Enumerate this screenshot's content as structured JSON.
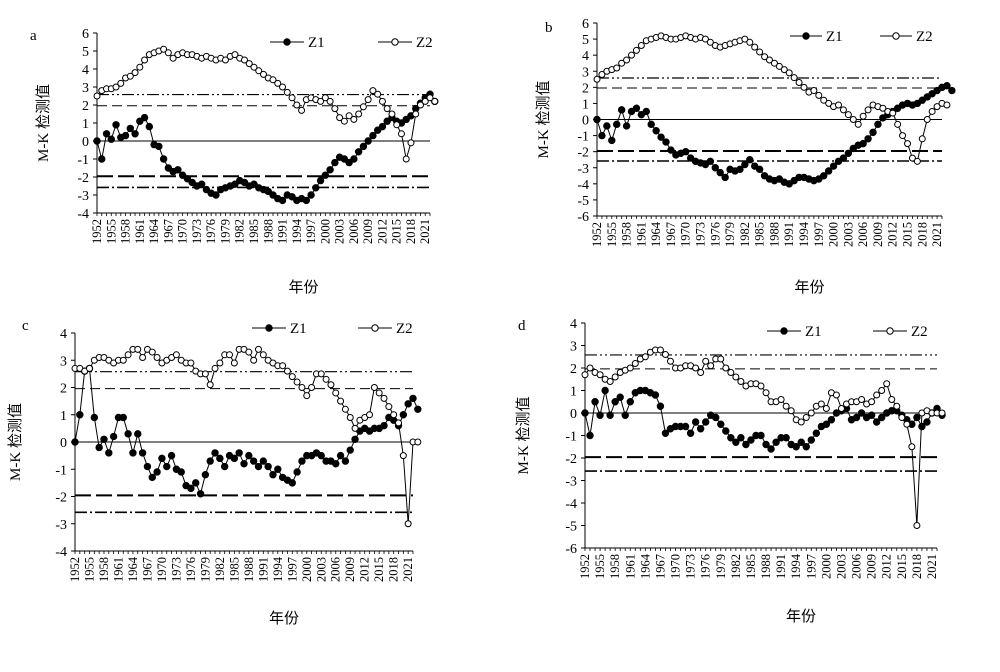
{
  "chart_data": [
    {
      "panel": "a",
      "type": "line",
      "ylabel": "M-K 检测值",
      "xlabel": "年份",
      "ylim": [
        -4,
        6
      ],
      "yticks": [
        -4,
        -3,
        -2,
        -1,
        0,
        1,
        2,
        3,
        4,
        5,
        6
      ],
      "xticks": [
        "1952",
        "1955",
        "1958",
        "1961",
        "1964",
        "1967",
        "1970",
        "1973",
        "1976",
        "1979",
        "1982",
        "1985",
        "1988",
        "1991",
        "1994",
        "1997",
        "2000",
        "2003",
        "2006",
        "2009",
        "2012",
        "2015",
        "2018",
        "2021"
      ],
      "year_start": 1952,
      "year_end": 2022,
      "critical_lines": [
        1.96,
        -1.96,
        2.58,
        -2.58
      ],
      "series": [
        {
          "name": "Z1",
          "style": "filled",
          "values": [
            0,
            -1,
            0.4,
            0.1,
            0.9,
            0.2,
            0.3,
            0.7,
            0.4,
            1.1,
            1.3,
            0.8,
            -0.2,
            -0.3,
            -1,
            -1.5,
            -1.7,
            -1.6,
            -1.9,
            -2.1,
            -2.3,
            -2.5,
            -2.4,
            -2.7,
            -2.9,
            -3,
            -2.7,
            -2.6,
            -2.5,
            -2.4,
            -2.2,
            -2.3,
            -2.5,
            -2.4,
            -2.6,
            -2.7,
            -2.8,
            -3,
            -3.2,
            -3.3,
            -3,
            -3.1,
            -3.3,
            -3.2,
            -3.3,
            -3,
            -2.6,
            -2.2,
            -1.9,
            -1.6,
            -1.2,
            -0.9,
            -1,
            -1.2,
            -1,
            -0.6,
            -0.3,
            0,
            0.3,
            0.6,
            0.8,
            1.1,
            1.3,
            1.1,
            1,
            1.2,
            1.4,
            1.8,
            2.1,
            2.4,
            2.6,
            2.2
          ]
        },
        {
          "name": "Z2",
          "style": "open",
          "values": [
            2.5,
            2.8,
            2.9,
            2.9,
            3,
            3.2,
            3.5,
            3.6,
            3.8,
            4.1,
            4.5,
            4.8,
            4.9,
            5,
            5.1,
            4.9,
            4.6,
            4.8,
            4.9,
            4.8,
            4.8,
            4.7,
            4.6,
            4.7,
            4.6,
            4.5,
            4.6,
            4.5,
            4.7,
            4.8,
            4.6,
            4.5,
            4.3,
            4.1,
            3.9,
            3.7,
            3.5,
            3.4,
            3.2,
            3,
            2.7,
            2.4,
            2,
            1.7,
            2.3,
            2.4,
            2.3,
            2.2,
            2.4,
            2.2,
            1.8,
            1.3,
            1.1,
            1.4,
            1.2,
            1.5,
            1.9,
            2.3,
            2.8,
            2.6,
            2.2,
            1.8,
            1.5,
            0.9,
            0.4,
            -1,
            -0.1,
            1.5,
            2,
            2.2,
            2.4,
            2.2
          ]
        }
      ]
    },
    {
      "panel": "b",
      "type": "line",
      "ylabel": "M-K 检测值",
      "xlabel": "年份",
      "ylim": [
        -6,
        6
      ],
      "yticks": [
        -6,
        -5,
        -4,
        -3,
        -2,
        -1,
        0,
        1,
        2,
        3,
        4,
        5,
        6
      ],
      "xticks": [
        "1952",
        "1955",
        "1958",
        "1961",
        "1964",
        "1967",
        "1970",
        "1973",
        "1976",
        "1979",
        "1982",
        "1985",
        "1988",
        "1991",
        "1994",
        "1997",
        "2000",
        "2003",
        "2006",
        "2009",
        "2012",
        "2015",
        "2018",
        "2021"
      ],
      "year_start": 1952,
      "year_end": 2022,
      "critical_lines": [
        1.96,
        -1.96,
        2.58,
        -2.58
      ],
      "series": [
        {
          "name": "Z1",
          "style": "filled",
          "values": [
            0,
            -1,
            -0.4,
            -1.3,
            -0.3,
            0.6,
            -0.4,
            0.5,
            0.7,
            0.3,
            0.5,
            -0.3,
            -0.7,
            -1.1,
            -1.4,
            -1.9,
            -2.2,
            -2.1,
            -2.0,
            -2.4,
            -2.6,
            -2.7,
            -2.8,
            -2.6,
            -3,
            -3.3,
            -3.6,
            -3.1,
            -3.2,
            -3.1,
            -2.8,
            -2.5,
            -2.9,
            -3.1,
            -3.5,
            -3.7,
            -3.8,
            -3.7,
            -3.9,
            -4,
            -3.8,
            -3.6,
            -3.6,
            -3.7,
            -3.8,
            -3.7,
            -3.5,
            -3.2,
            -2.9,
            -2.6,
            -2.4,
            -2.1,
            -1.8,
            -1.6,
            -1.5,
            -1.2,
            -0.8,
            -0.3,
            0.1,
            0.3,
            0.5,
            0.7,
            0.9,
            1,
            0.9,
            1,
            1.2,
            1.4,
            1.6,
            1.8,
            2,
            2.1,
            1.8
          ]
        },
        {
          "name": "Z2",
          "style": "open",
          "values": [
            2.5,
            2.8,
            3,
            3.1,
            3.2,
            3.5,
            3.7,
            4,
            4.3,
            4.6,
            4.9,
            5,
            5.1,
            5.2,
            5.1,
            5,
            5,
            5.1,
            5.2,
            5.1,
            5,
            5.1,
            5,
            4.8,
            4.6,
            4.5,
            4.6,
            4.7,
            4.8,
            4.9,
            5,
            4.8,
            4.5,
            4.2,
            3.9,
            3.7,
            3.5,
            3.3,
            3.1,
            2.9,
            2.6,
            2.3,
            2,
            1.7,
            1.8,
            1.5,
            1.2,
            1,
            0.8,
            0.9,
            0.6,
            0.3,
            0,
            -0.3,
            0.2,
            0.6,
            0.9,
            0.8,
            0.7,
            0.5,
            0.4,
            -0.3,
            -1,
            -1.5,
            -2.4,
            -2.6,
            -1.2,
            0,
            0.5,
            0.8,
            1,
            0.9
          ]
        }
      ]
    },
    {
      "panel": "c",
      "type": "line",
      "ylabel": "M-K 检测值",
      "xlabel": "年份",
      "ylim": [
        -4,
        4
      ],
      "yticks": [
        -4,
        -3,
        -2,
        -1,
        0,
        1,
        2,
        3,
        4
      ],
      "xticks": [
        "1952",
        "1955",
        "1958",
        "1961",
        "1964",
        "1967",
        "1970",
        "1973",
        "1976",
        "1979",
        "1982",
        "1985",
        "1988",
        "1991",
        "1994",
        "1997",
        "2000",
        "2003",
        "2006",
        "2009",
        "2012",
        "2015",
        "2018",
        "2021"
      ],
      "year_start": 1952,
      "year_end": 2022,
      "critical_lines": [
        1.96,
        -1.96,
        2.58,
        -2.58
      ],
      "series": [
        {
          "name": "Z1",
          "style": "filled",
          "values": [
            0,
            1,
            2.6,
            2.7,
            0.9,
            -0.2,
            0.1,
            -0.4,
            0.2,
            0.9,
            0.9,
            0.3,
            -0.4,
            0.3,
            -0.4,
            -0.9,
            -1.3,
            -1.1,
            -0.6,
            -0.9,
            -0.5,
            -1,
            -1.1,
            -1.6,
            -1.7,
            -1.5,
            -1.9,
            -1.2,
            -0.7,
            -0.4,
            -0.6,
            -0.9,
            -0.5,
            -0.6,
            -0.4,
            -0.8,
            -0.5,
            -0.7,
            -0.9,
            -0.7,
            -0.9,
            -1.2,
            -1,
            -1.3,
            -1.4,
            -1.5,
            -1.1,
            -0.7,
            -0.5,
            -0.5,
            -0.4,
            -0.5,
            -0.7,
            -0.7,
            -0.8,
            -0.5,
            -0.7,
            -0.3,
            0.1,
            0.4,
            0.5,
            0.4,
            0.5,
            0.5,
            0.6,
            0.9,
            0.8,
            0.6,
            1,
            1.4,
            1.6,
            1.2
          ]
        },
        {
          "name": "Z2",
          "style": "open",
          "values": [
            2.7,
            2.7,
            2.6,
            2.7,
            3,
            3.1,
            3.1,
            3,
            2.9,
            3,
            3,
            3.2,
            3.4,
            3.4,
            3.1,
            3.4,
            3.3,
            3.1,
            2.9,
            3,
            3.1,
            3.2,
            3,
            2.9,
            2.9,
            2.6,
            2.5,
            2.5,
            2.1,
            2.7,
            2.9,
            3.2,
            3.2,
            2.9,
            3.4,
            3.4,
            3.3,
            3,
            3.4,
            3.2,
            3,
            2.9,
            2.8,
            2.8,
            2.6,
            2.4,
            2.2,
            2,
            1.7,
            2,
            2.5,
            2.5,
            2.3,
            2.1,
            1.8,
            1.5,
            1.2,
            0.9,
            0.5,
            0.8,
            0.9,
            1,
            2,
            1.8,
            1.6,
            1.3,
            1,
            0.7,
            -0.5,
            -3,
            0,
            0
          ]
        }
      ]
    },
    {
      "panel": "d",
      "type": "line",
      "ylabel": "M-K 检测值",
      "xlabel": "年份",
      "ylim": [
        -6,
        4
      ],
      "yticks": [
        -6,
        -5,
        -4,
        -3,
        -2,
        -1,
        0,
        1,
        2,
        3,
        4
      ],
      "xticks": [
        "1952",
        "1955",
        "1958",
        "1961",
        "1964",
        "1967",
        "1970",
        "1973",
        "1976",
        "1979",
        "1982",
        "1985",
        "1988",
        "1991",
        "1994",
        "1997",
        "2000",
        "2003",
        "2006",
        "2009",
        "2012",
        "2015",
        "2018",
        "2021"
      ],
      "year_start": 1952,
      "year_end": 2022,
      "critical_lines": [
        1.96,
        -1.96,
        2.58,
        -2.58
      ],
      "series": [
        {
          "name": "Z1",
          "style": "filled",
          "values": [
            0,
            -1,
            0.5,
            -0.1,
            1,
            -0.1,
            0.5,
            0.7,
            -0.1,
            0.5,
            0.9,
            1,
            1,
            0.9,
            0.8,
            0.3,
            -0.9,
            -0.7,
            -0.6,
            -0.6,
            -0.6,
            -0.9,
            -0.4,
            -0.7,
            -0.4,
            -0.1,
            -0.2,
            -0.5,
            -0.8,
            -1.1,
            -1.3,
            -1.1,
            -1.4,
            -1.2,
            -1,
            -1,
            -1.4,
            -1.6,
            -1.3,
            -1.1,
            -1.1,
            -1.4,
            -1.5,
            -1.3,
            -1.5,
            -1.2,
            -0.9,
            -0.6,
            -0.5,
            -0.3,
            0,
            0.1,
            0.2,
            -0.3,
            -0.2,
            0,
            -0.2,
            -0.1,
            -0.4,
            -0.2,
            0,
            0.1,
            0.1,
            -0.1,
            -0.3,
            -0.5,
            -0.2,
            -0.6,
            -0.4,
            0,
            0.2,
            -0.1
          ]
        },
        {
          "name": "Z2",
          "style": "open",
          "values": [
            1.7,
            2,
            1.8,
            1.7,
            1.5,
            1.4,
            1.6,
            1.8,
            1.9,
            2,
            2.2,
            2.4,
            2.5,
            2.7,
            2.8,
            2.8,
            2.6,
            2.3,
            2,
            2,
            2.1,
            2.1,
            2,
            1.8,
            2.3,
            2.1,
            2.4,
            2.4,
            2,
            1.8,
            1.6,
            1.4,
            1.2,
            1.3,
            1.3,
            1.2,
            0.9,
            0.5,
            0.5,
            0.6,
            0.3,
            0.1,
            -0.3,
            -0.4,
            -0.2,
            0,
            0.3,
            0.4,
            0.2,
            0.9,
            0.8,
            0.2,
            0.4,
            0.5,
            0.5,
            0.6,
            0.4,
            0.5,
            0.8,
            1,
            1.3,
            0.6,
            0.3,
            -0.2,
            -0.5,
            -1.5,
            -5,
            0,
            0.1,
            0,
            0,
            0
          ]
        }
      ]
    }
  ]
}
